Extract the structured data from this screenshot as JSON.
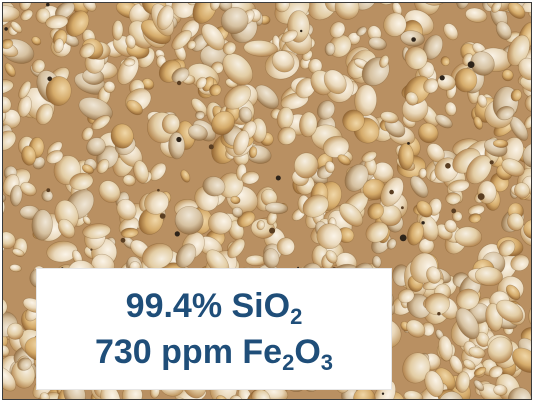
{
  "image": {
    "subject": "sand-grains-photo",
    "palette": [
      "#c9a46e",
      "#e8d7b6",
      "#b48a52",
      "#8a6336",
      "#f3eadb"
    ]
  },
  "label": {
    "line1": {
      "text": "99.4% SiO",
      "sub": "2",
      "tail": ""
    },
    "line2": {
      "text": "730 ppm Fe",
      "sub": "2",
      "text2": "O",
      "sub2": "3"
    },
    "color": "#1f4e79"
  }
}
